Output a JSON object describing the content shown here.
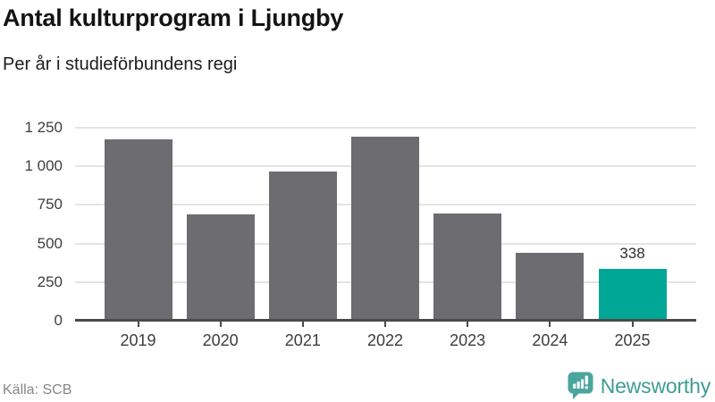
{
  "header": {
    "title": "Antal kulturprogram i Ljungby",
    "subtitle": "Per år i studieförbundens regi"
  },
  "chart_data": {
    "type": "bar",
    "title": "Antal kulturprogram i Ljungby",
    "subtitle": "Per år i studieförbundens regi",
    "categories": [
      "2019",
      "2020",
      "2021",
      "2022",
      "2023",
      "2024",
      "2025"
    ],
    "values": [
      1175,
      690,
      965,
      1195,
      695,
      440,
      338
    ],
    "highlight_index": 6,
    "annotation": {
      "index": 6,
      "text": "338"
    },
    "xlabel": "",
    "ylabel": "",
    "ylim": [
      0,
      1250
    ],
    "yticks": [
      0,
      250,
      500,
      750,
      1000,
      1250
    ],
    "ytick_labels": [
      "0",
      "250",
      "500",
      "750",
      "1 000",
      "1 250"
    ],
    "grid": "horizontal",
    "legend": "none",
    "bar_color": "#6c6c71",
    "highlight_color": "#00a696"
  },
  "footer": {
    "source": "Källa: SCB",
    "brand": "Newsworthy"
  },
  "colors": {
    "bar_gray": "#6c6c71",
    "highlight_teal": "#00a696",
    "logo_bubble_teal": "#4aa59d",
    "wordmark_teal": "#3e9c94",
    "grid_line": "#e4e4e4",
    "axis_line": "#4a4a4a",
    "title_text": "#141414",
    "tick_text": "#3d3d3d",
    "muted_text": "#878787"
  }
}
